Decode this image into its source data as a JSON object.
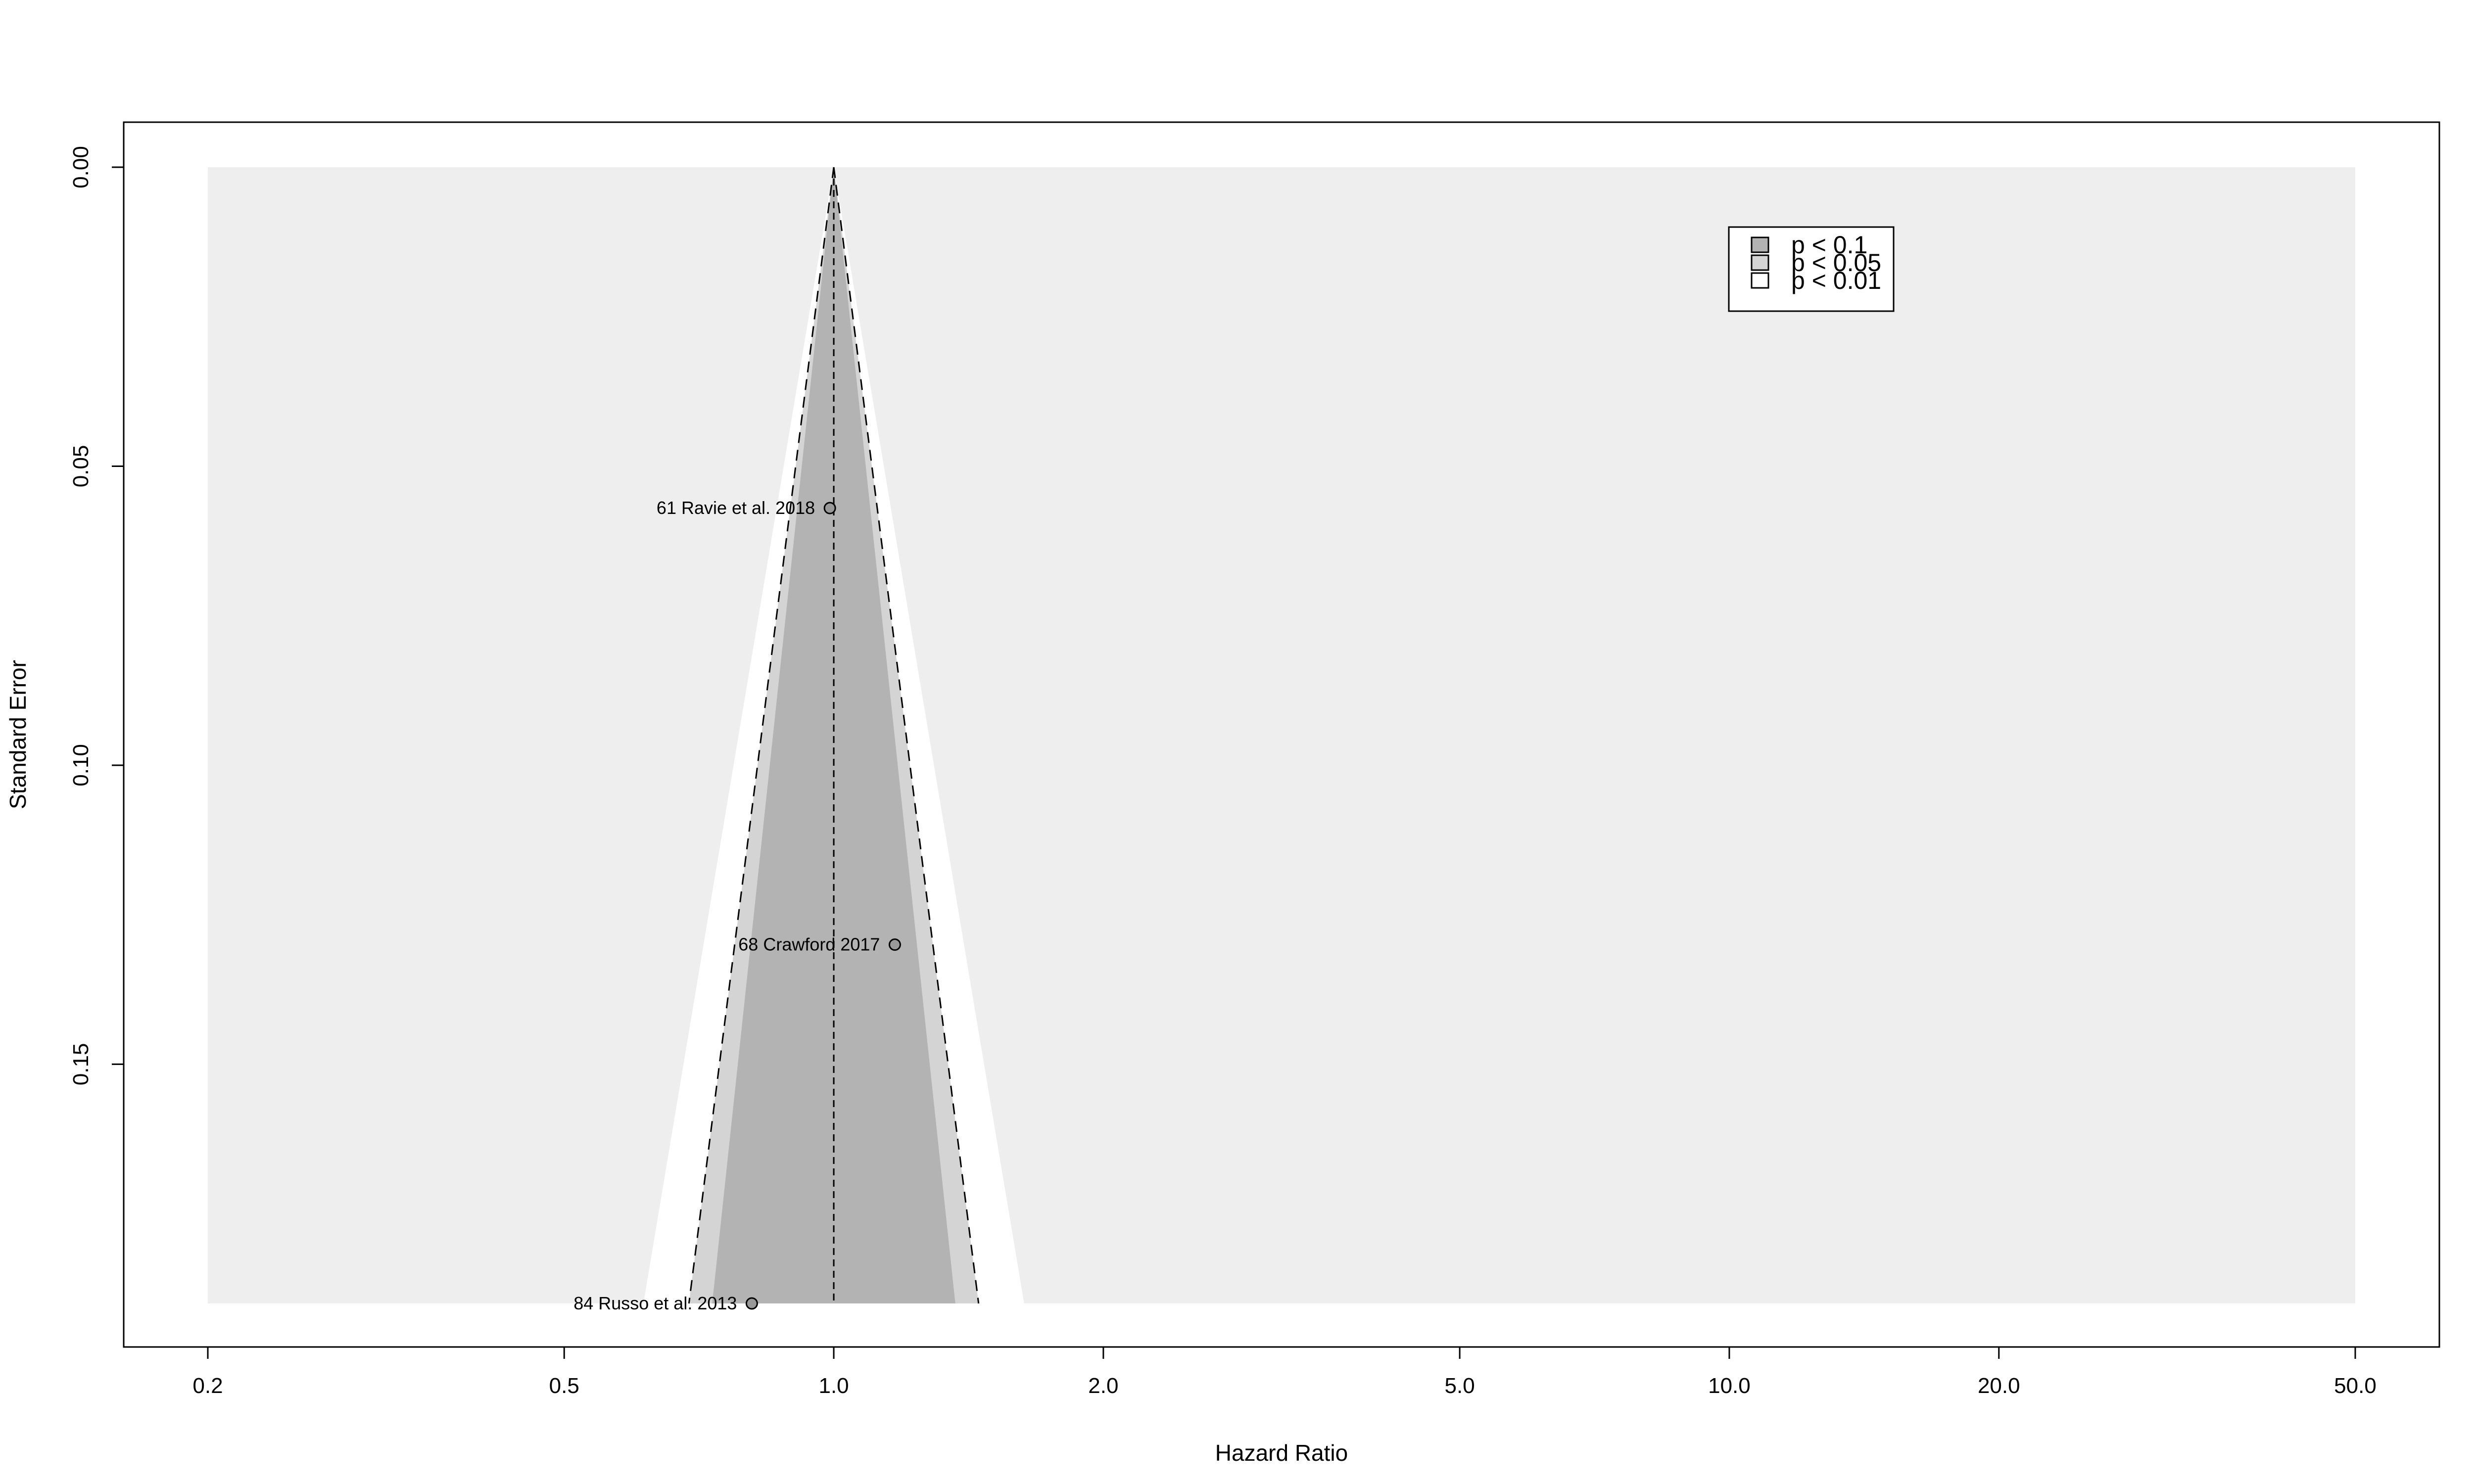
{
  "chart_data": {
    "type": "scatter",
    "subtype": "contour-enhanced funnel plot",
    "xlabel": "Hazard Ratio",
    "ylabel": "Standard Error",
    "x_scale": "log",
    "xlim": [
      0.2,
      50.0
    ],
    "ylim": [
      0.19,
      0.0
    ],
    "x_ticks": [
      "0.2",
      "0.5",
      "1.0",
      "2.0",
      "5.0",
      "10.0",
      "20.0",
      "50.0"
    ],
    "y_ticks": [
      "0.00",
      "0.05",
      "0.10",
      "0.15"
    ],
    "reference_line_x": 1.0,
    "contours": [
      {
        "label": "p < 0.1",
        "color": "#b3b3b3",
        "z": 1.645
      },
      {
        "label": "p < 0.05",
        "color": "#d4d4d4",
        "z": 1.96
      },
      {
        "label": "p < 0.01",
        "color": "#ffffff",
        "z": 2.576
      }
    ],
    "outer_region_color": "#eeeeee",
    "points": [
      {
        "label": "61 Ravie et al. 2018",
        "hr": 0.99,
        "se": 0.057
      },
      {
        "label": "68 Crawford 2017",
        "hr": 1.17,
        "se": 0.13
      },
      {
        "label": "84 Russo et al. 2013",
        "hr": 0.81,
        "se": 0.19
      }
    ]
  }
}
